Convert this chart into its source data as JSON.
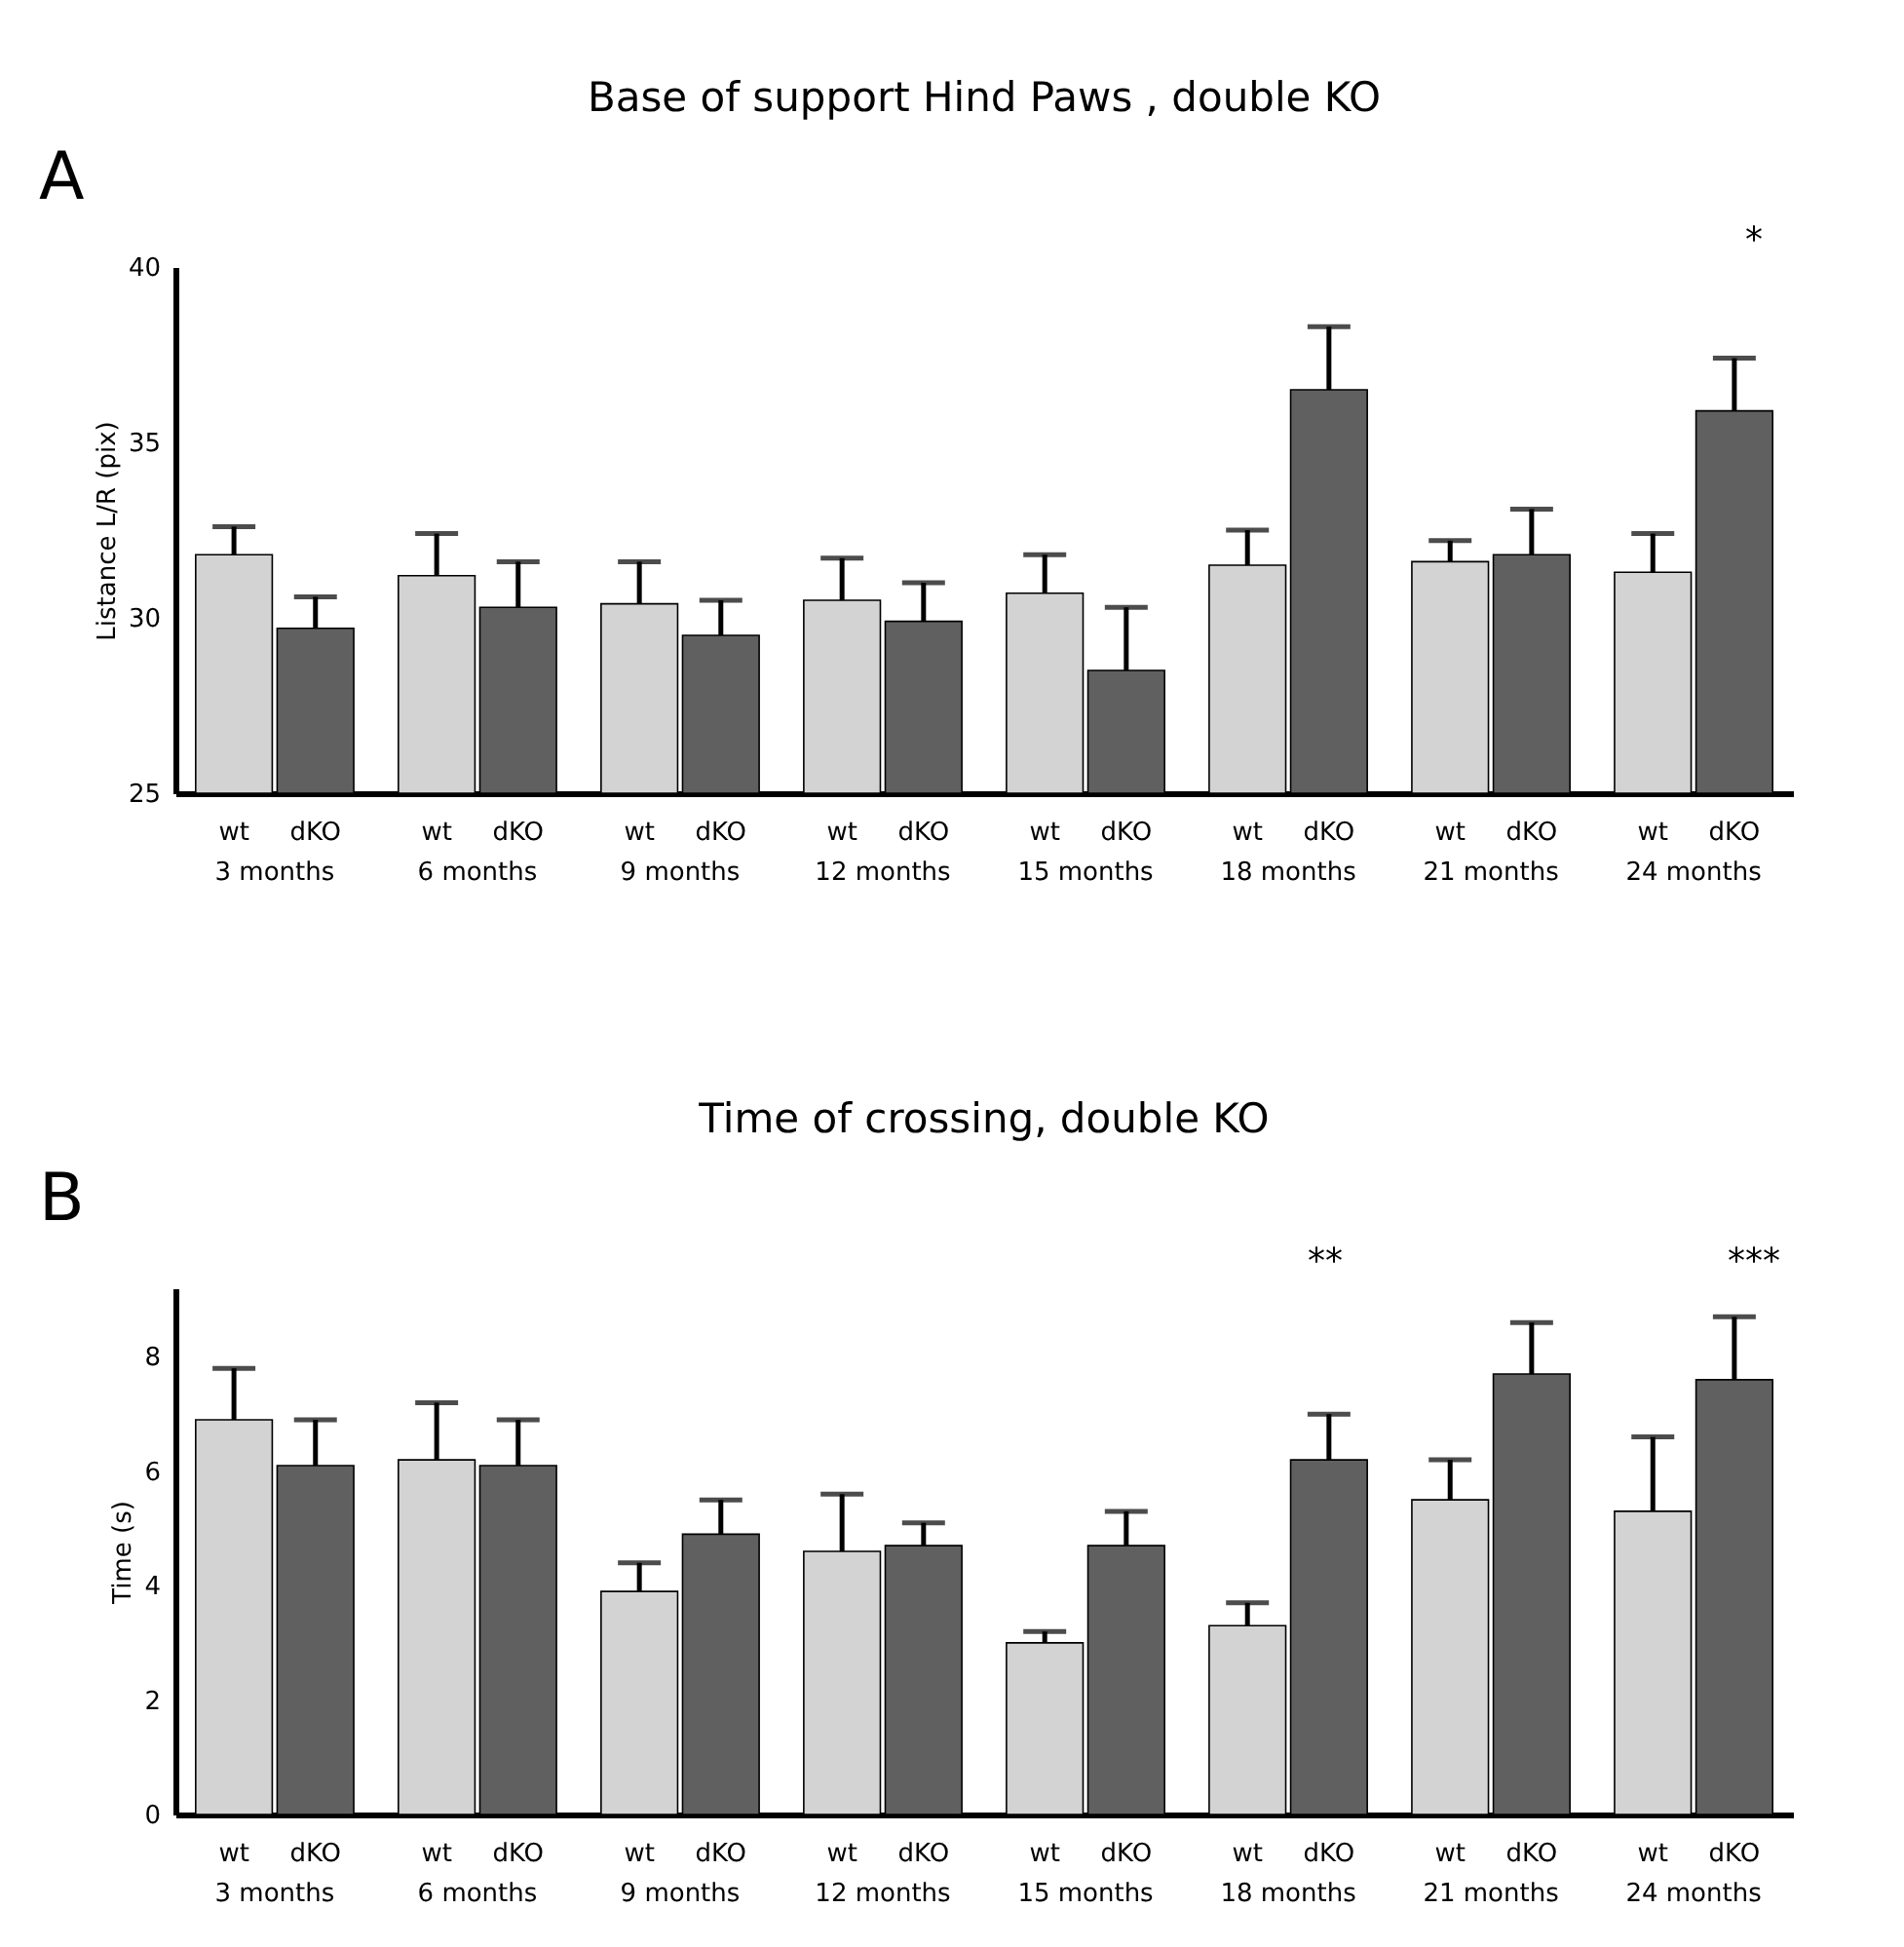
{
  "chart_data": [
    {
      "type": "bar",
      "title": "Base of support Hind Paws , double KO",
      "ylabel": "Listance L/R (pix)",
      "categories": [
        "3 months",
        "6 months",
        "9 months",
        "12 months",
        "15 months",
        "18 months",
        "21 months",
        "24 months"
      ],
      "series": [
        {
          "name": "wt",
          "color": "#d3d3d3",
          "values": [
            31.8,
            31.2,
            30.4,
            30.5,
            30.7,
            31.5,
            31.6,
            31.3
          ],
          "errors": [
            [
              31.8,
              32.6
            ],
            [
              31.2,
              32.4
            ],
            [
              30.4,
              31.6
            ],
            [
              30.5,
              31.7
            ],
            [
              30.7,
              31.8
            ],
            [
              31.5,
              32.5
            ],
            [
              31.6,
              32.2
            ],
            [
              31.3,
              32.4
            ]
          ]
        },
        {
          "name": "dKO",
          "color": "#606060",
          "values": [
            29.7,
            30.3,
            29.5,
            29.9,
            28.5,
            36.5,
            31.8,
            35.9
          ],
          "errors": [
            [
              29.7,
              30.6
            ],
            [
              30.3,
              31.6
            ],
            [
              29.5,
              30.5
            ],
            [
              29.9,
              31.0
            ],
            [
              28.5,
              30.3
            ],
            [
              36.5,
              38.3
            ],
            [
              31.8,
              33.1
            ],
            [
              35.9,
              37.4
            ]
          ]
        }
      ],
      "ylim": [
        25,
        40
      ],
      "yticks": [
        25,
        30,
        35,
        40
      ],
      "annotations": [
        "A",
        "*"
      ]
    },
    {
      "type": "bar",
      "title": "Time of crossing, double KO",
      "ylabel": "Time (s)",
      "categories": [
        "3 months",
        "6 months",
        "9 months",
        "12 months",
        "15 months",
        "18 months",
        "21 months",
        "24 months"
      ],
      "series": [
        {
          "name": "wt",
          "color": "#d3d3d3",
          "values": [
            6.9,
            6.2,
            3.9,
            4.6,
            3.0,
            3.3,
            5.5,
            5.3
          ],
          "errors": [
            [
              6.9,
              7.8
            ],
            [
              6.2,
              7.2
            ],
            [
              3.9,
              4.4
            ],
            [
              4.6,
              5.6
            ],
            [
              3.0,
              3.2
            ],
            [
              3.3,
              3.7
            ],
            [
              5.5,
              6.2
            ],
            [
              5.3,
              6.6
            ]
          ]
        },
        {
          "name": "dKO",
          "color": "#606060",
          "values": [
            6.1,
            6.1,
            4.9,
            4.7,
            4.7,
            6.2,
            7.7,
            7.6
          ],
          "errors": [
            [
              6.1,
              6.9
            ],
            [
              6.1,
              6.9
            ],
            [
              4.9,
              5.5
            ],
            [
              4.7,
              5.1
            ],
            [
              4.7,
              5.3
            ],
            [
              6.2,
              7.0
            ],
            [
              7.7,
              8.6
            ],
            [
              7.6,
              8.7
            ]
          ]
        }
      ],
      "ylim": [
        0,
        9.2
      ],
      "yticks": [
        0,
        2,
        4,
        6,
        8
      ],
      "annotations": [
        "B",
        "**",
        "***"
      ]
    }
  ]
}
